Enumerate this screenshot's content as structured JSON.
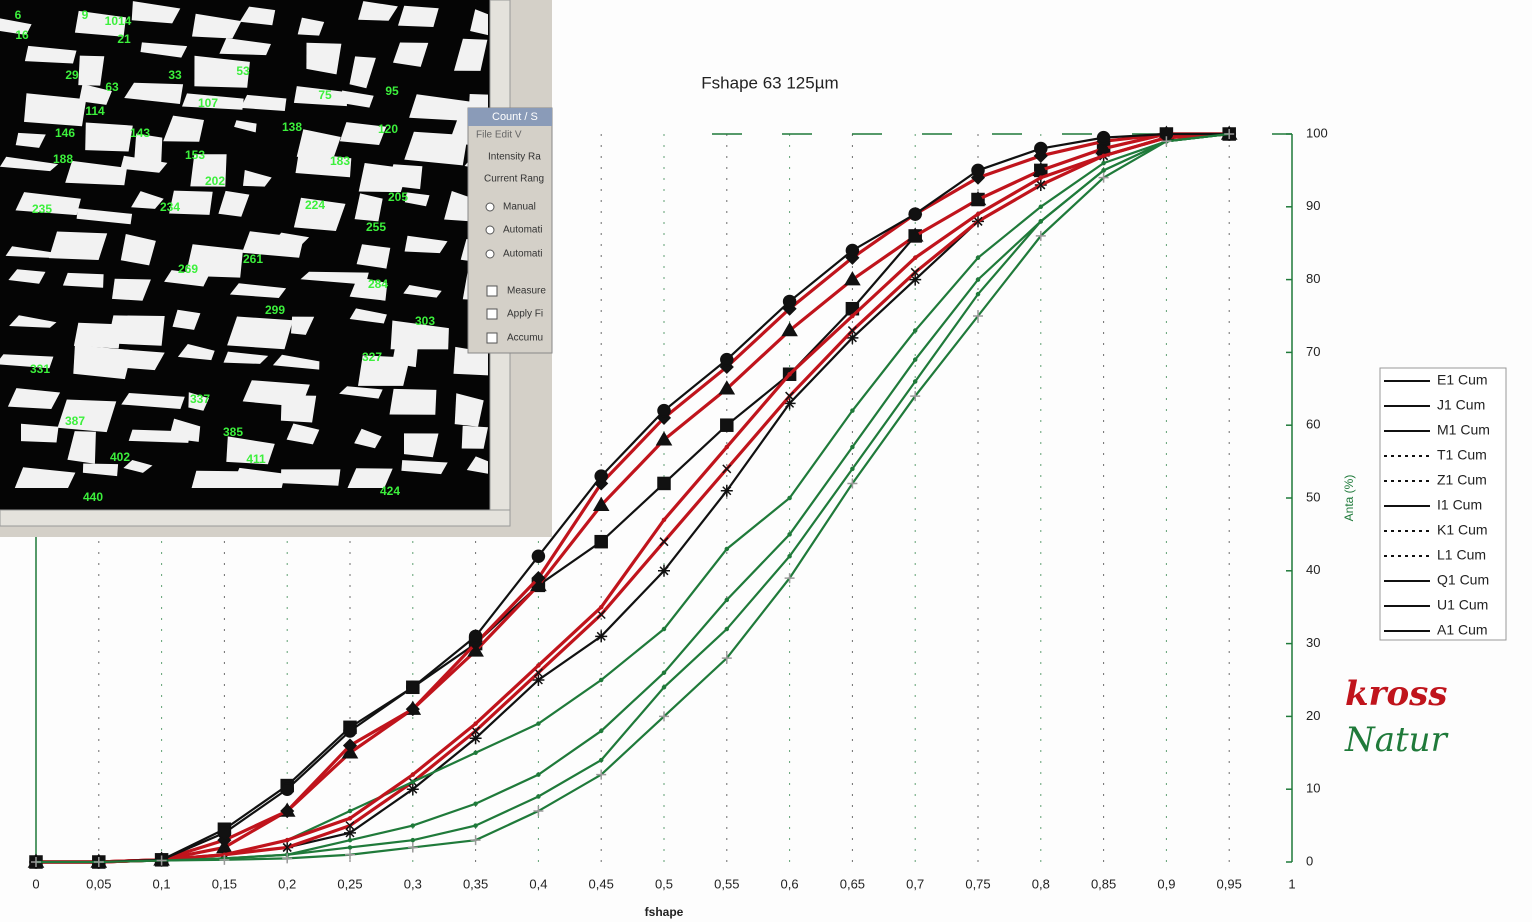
{
  "chart_data": {
    "type": "line",
    "title": "Fshape 63 125µm",
    "x_label": "fshape",
    "y_label": "Anta (%)",
    "x": [
      0,
      0.05,
      0.1,
      0.15,
      0.2,
      0.25,
      0.3,
      0.35,
      0.4,
      0.45,
      0.5,
      0.55,
      0.6,
      0.65,
      0.7,
      0.75,
      0.8,
      0.85,
      0.9,
      0.95
    ],
    "xlim": [
      0,
      1
    ],
    "xticks": [
      0,
      {
        "value": 0.05,
        "label": "0,05"
      },
      {
        "value": 0.1,
        "label": "0,1"
      },
      {
        "value": 0.15,
        "label": "0,15"
      },
      {
        "value": 0.2,
        "label": "0,2"
      },
      {
        "value": 0.25,
        "label": "0,25"
      },
      {
        "value": 0.3,
        "label": "0,3"
      },
      {
        "value": 0.35,
        "label": "0,35"
      },
      {
        "value": 0.4,
        "label": "0,4"
      },
      {
        "value": 0.45,
        "label": "0,45"
      },
      {
        "value": 0.5,
        "label": "0,5"
      },
      {
        "value": 0.55,
        "label": "0,55"
      },
      {
        "value": 0.6,
        "label": "0,6"
      },
      {
        "value": 0.65,
        "label": "0,65"
      },
      {
        "value": 0.7,
        "label": "0,7"
      },
      {
        "value": 0.75,
        "label": "0,75"
      },
      {
        "value": 0.8,
        "label": "0,8"
      },
      {
        "value": 0.85,
        "label": "0,85"
      },
      {
        "value": 0.9,
        "label": "0,9"
      },
      {
        "value": 0.95,
        "label": "0,95"
      },
      1
    ],
    "ylim": [
      0,
      100
    ],
    "yticks": [
      0,
      10,
      20,
      30,
      40,
      50,
      60,
      70,
      80,
      90,
      100
    ],
    "grid": true,
    "legend": "right",
    "series": [
      {
        "name": "E1 Cum",
        "color": "#111111",
        "marker": "star",
        "values": [
          0,
          0,
          0.3,
          1,
          2,
          4,
          10,
          17,
          25,
          31,
          40,
          51,
          63,
          72,
          80,
          88,
          93,
          97,
          99.5,
          100
        ]
      },
      {
        "name": "J1 Cum",
        "color": "#111111",
        "marker": "square",
        "values": [
          0,
          0,
          0.3,
          4.5,
          10.5,
          18.5,
          24,
          30,
          38,
          44,
          52,
          60,
          67,
          76,
          86,
          91,
          95,
          98,
          100,
          100
        ]
      },
      {
        "name": "M1 Cum",
        "color": "#c0141c",
        "marker": "cross",
        "values": [
          0,
          0,
          0.3,
          1,
          2,
          5,
          11,
          18,
          26,
          34,
          44,
          54,
          64,
          73,
          81,
          88,
          93,
          97,
          99.5,
          100
        ]
      },
      {
        "name": "T1 Cum",
        "color": "#1f7a3a",
        "marker": "none",
        "values": [
          0,
          0,
          0.2,
          1,
          3,
          7,
          11,
          15,
          19,
          25,
          32,
          43,
          50,
          62,
          73,
          83,
          90,
          96,
          99,
          100
        ]
      },
      {
        "name": "Z1 Cum",
        "color": "#1f7a3a",
        "marker": "none",
        "values": [
          0,
          0,
          0.2,
          0.5,
          1,
          3,
          5,
          8,
          12,
          18,
          26,
          36,
          45,
          57,
          69,
          80,
          88,
          95,
          99,
          100
        ]
      },
      {
        "name": "I1 Cum",
        "color": "#c0141c",
        "marker": "triangle",
        "values": [
          0,
          0,
          0.3,
          2,
          7,
          15,
          21,
          29,
          38,
          49,
          58,
          65,
          73,
          80,
          86,
          91,
          95,
          98,
          100,
          100
        ]
      },
      {
        "name": "K1 Cum",
        "color": "#c0141c",
        "marker": "none",
        "values": [
          0,
          0,
          0.3,
          1,
          3,
          6,
          12,
          19,
          27,
          35,
          47,
          57,
          67,
          75,
          83,
          89,
          94,
          97,
          99.5,
          100
        ]
      },
      {
        "name": "L1 Cum",
        "color": "#1f7a3a",
        "marker": "none",
        "values": [
          0,
          0,
          0.2,
          0.5,
          1,
          2,
          3,
          5,
          9,
          14,
          24,
          32,
          42,
          54,
          66,
          78,
          88,
          95,
          99,
          100
        ]
      },
      {
        "name": "Q1 Cum",
        "color": "#c0141c",
        "marker": "diamond",
        "values": [
          0,
          0,
          0.3,
          3,
          7,
          16,
          21,
          30,
          39,
          52,
          61,
          68,
          76,
          83,
          89,
          94,
          97,
          99,
          100,
          100
        ]
      },
      {
        "name": "U1 Cum",
        "color": "#111111",
        "marker": "circle",
        "values": [
          0,
          0,
          0.3,
          4,
          10,
          18,
          24,
          31,
          42,
          53,
          62,
          69,
          77,
          84,
          89,
          95,
          98,
          99.5,
          100,
          100
        ]
      },
      {
        "name": "A1 Cum",
        "color": "#1f7a3a",
        "marker": "plus",
        "values": [
          0,
          0,
          0.2,
          0.3,
          0.5,
          1,
          2,
          3,
          7,
          12,
          20,
          28,
          39,
          52,
          64,
          75,
          86,
          94,
          99,
          100
        ]
      }
    ],
    "annotations": [
      {
        "text": "kross",
        "color": "#c0141c"
      },
      {
        "text": "Natur",
        "color": "#1f7a3a"
      }
    ]
  },
  "inset": {
    "particle_labels": [
      "6",
      "9",
      "1014",
      "16",
      "21",
      "29",
      "63",
      "33",
      "53",
      "75",
      "95",
      "114",
      "107",
      "146",
      "143",
      "138",
      "120",
      "188",
      "153",
      "183",
      "202",
      "205",
      "235",
      "234",
      "224",
      "255",
      "261",
      "269",
      "284",
      "299",
      "303",
      "327",
      "331",
      "337",
      "387",
      "385",
      "402",
      "411",
      "440",
      "424"
    ],
    "dialog": {
      "title": "Count / S",
      "menu": "File  Edit  V",
      "group": "Intensity Ra",
      "range": "Current Rang",
      "radios": [
        "Manual",
        "Automati",
        "Automati"
      ],
      "checks": [
        "Measure",
        "Apply Fi",
        "Accumu"
      ]
    }
  }
}
